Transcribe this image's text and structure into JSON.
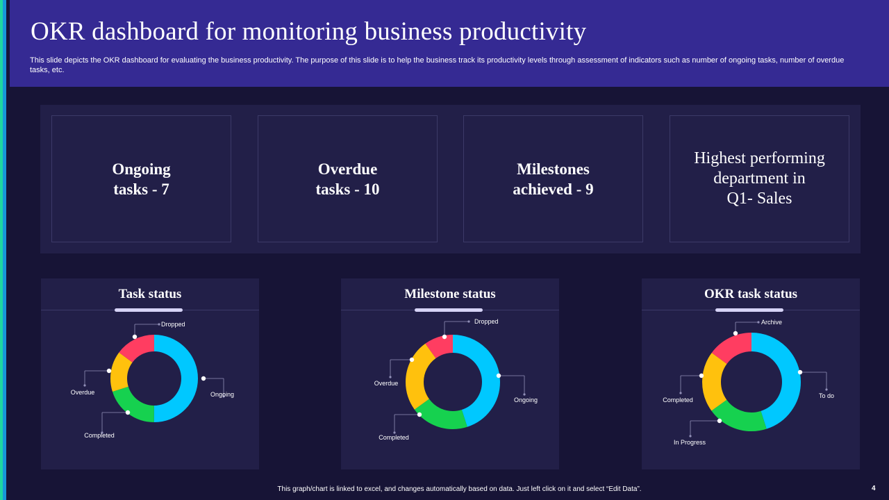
{
  "header": {
    "title": "OKR dashboard for monitoring business productivity",
    "subtitle": "This slide depicts the OKR dashboard for evaluating the business productivity. The purpose of this slide is to help the business track its productivity levels through assessment of indicators such as number of ongoing tasks, number of overdue tasks, etc."
  },
  "kpis": [
    {
      "text": "Ongoing\ntasks - 7"
    },
    {
      "text": "Overdue\ntasks - 10"
    },
    {
      "text": "Milestones\nachieved - 9"
    },
    {
      "text": "Highest performing\ndepartment in\nQ1- Sales"
    }
  ],
  "colors": {
    "cyan": "#00c8ff",
    "green": "#16d14f",
    "yellow": "#ffc10d",
    "red": "#ff3d61"
  },
  "chart_data": [
    {
      "type": "pie",
      "title": "Task status",
      "labels": [
        "Ongoing",
        "Completed",
        "Overdue",
        "Dropped"
      ],
      "values": [
        50,
        20,
        15,
        15
      ],
      "colors": [
        "#00c8ff",
        "#16d14f",
        "#ffc10d",
        "#ff3d61"
      ]
    },
    {
      "type": "pie",
      "title": "Milestone status",
      "labels": [
        "Ongoing",
        "Completed",
        "Overdue",
        "Dropped"
      ],
      "values": [
        45,
        20,
        25,
        10
      ],
      "colors": [
        "#00c8ff",
        "#16d14f",
        "#ffc10d",
        "#ff3d61"
      ]
    },
    {
      "type": "pie",
      "title": "OKR task status",
      "labels": [
        "To do",
        "In Progress",
        "Completed",
        "Archive"
      ],
      "values": [
        45,
        20,
        20,
        15
      ],
      "colors": [
        "#00c8ff",
        "#16d14f",
        "#ffc10d",
        "#ff3d61"
      ]
    }
  ],
  "footer": {
    "note": "This graph/chart is linked to excel, and changes automatically based on data. Just left click on it and select “Edit Data”.",
    "page": "4"
  }
}
